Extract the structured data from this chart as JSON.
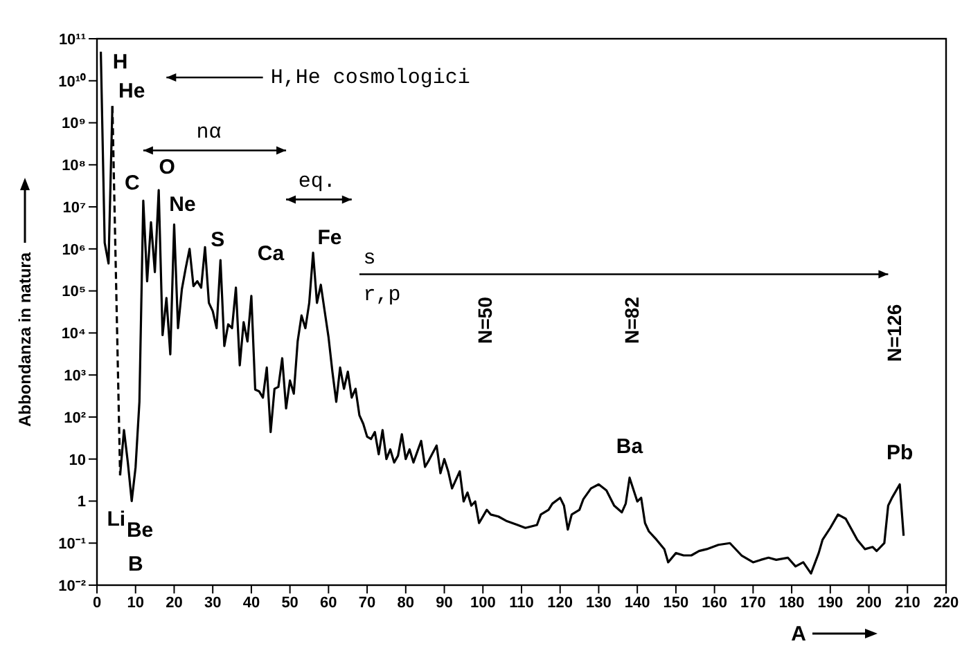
{
  "chart_data": {
    "type": "line",
    "xlabel": "A",
    "ylabel": "Abbondanza in natura",
    "log": "y",
    "marker": "none",
    "xlim": [
      0,
      220
    ],
    "xticks": [
      0,
      10,
      20,
      30,
      40,
      50,
      60,
      70,
      80,
      90,
      100,
      110,
      120,
      130,
      140,
      150,
      160,
      170,
      180,
      190,
      200,
      210,
      220
    ],
    "ylim": [
      0.01,
      100000000000.0
    ],
    "yticks": [
      {
        "value": 0.01,
        "label": "10⁻²"
      },
      {
        "value": 0.1,
        "label": "10⁻¹"
      },
      1,
      10,
      {
        "value": 100,
        "label": "10²"
      },
      {
        "value": 1000,
        "label": "10³"
      },
      {
        "value": 10000,
        "label": "10⁴"
      },
      {
        "value": 100000,
        "label": "10⁵"
      },
      {
        "value": 1000000,
        "label": "10⁶"
      },
      {
        "value": 10000000,
        "label": "10⁷"
      },
      {
        "value": 100000000,
        "label": "10⁸"
      },
      {
        "value": 1000000000,
        "label": "10⁹"
      },
      {
        "value": 10000000000,
        "label": "10¹⁰"
      },
      {
        "value": 100000000000,
        "label": "10¹¹"
      }
    ],
    "series": [
      {
        "color": "#000000",
        "line_style": "solid",
        "x": [
          1,
          2,
          3,
          4
        ],
        "values": [
          49000000000.0,
          1400000.0,
          450000.0,
          2500000000.0
        ]
      },
      {
        "color": "#000000",
        "line_style": "dashed",
        "x": [
          4,
          6
        ],
        "values": [
          2500000000.0,
          4.1
        ]
      },
      {
        "color": "#000000",
        "line_style": "solid",
        "x": [
          6,
          7,
          8,
          9,
          10,
          11,
          12,
          13,
          14,
          15,
          16,
          17,
          18,
          19,
          20,
          21,
          22,
          23,
          24,
          25,
          26,
          27,
          28,
          29,
          30,
          31,
          32,
          33,
          34,
          35,
          36,
          37,
          38,
          39,
          40,
          41,
          42,
          43,
          44,
          45,
          46,
          47,
          48,
          49,
          50,
          51,
          52,
          53,
          54,
          55,
          56,
          57,
          58,
          59,
          60,
          61,
          62,
          63,
          64,
          65,
          66,
          67,
          68,
          69,
          70,
          71,
          72,
          73,
          74,
          75,
          76,
          77,
          78,
          79,
          80,
          81,
          82,
          84,
          85,
          86,
          88,
          89,
          90,
          91,
          92,
          94,
          95,
          96,
          97,
          98,
          99,
          101,
          102,
          104,
          106,
          109,
          111,
          114,
          115,
          117,
          118,
          120,
          121,
          122,
          123,
          125,
          126,
          128,
          130,
          132,
          134,
          136,
          137,
          138,
          140,
          141,
          142,
          143,
          145,
          147,
          148,
          150,
          152,
          154,
          156,
          158,
          161,
          164,
          167,
          170,
          172,
          174,
          176,
          179,
          181,
          183,
          185,
          187,
          188,
          190,
          192,
          194,
          197,
          199,
          201,
          202,
          204,
          205,
          206,
          208,
          209
        ],
        "values": [
          4.1,
          49,
          8.3,
          1,
          6.3,
          230,
          14000000.0,
          170000.0,
          4300000.0,
          280000.0,
          25000000.0,
          8900.0,
          68000.0,
          3100.0,
          3800000.0,
          13000.0,
          110000.0,
          350000.0,
          1000000.0,
          130000.0,
          170000.0,
          120000.0,
          1100000.0,
          52000.0,
          33000.0,
          13000.0,
          540000.0,
          4900.0,
          16000.0,
          13000.0,
          120000.0,
          1700.0,
          18000.0,
          6300.0,
          76000.0,
          450,
          410,
          290,
          1500.0,
          44,
          470,
          520,
          2500.0,
          160,
          740,
          360,
          6300.0,
          26000.0,
          13000.0,
          52000.0,
          810000.0,
          52000.0,
          140000.0,
          33000.0,
          7900.0,
          1200.0,
          230,
          1500.0,
          470,
          1200.0,
          290,
          470,
          110,
          69,
          34,
          30,
          44,
          13,
          49,
          10,
          17,
          8.3,
          12,
          39,
          10,
          17,
          8.3,
          27,
          6.5,
          9.3,
          21,
          4.6,
          10,
          5.1,
          2,
          5.1,
          0.98,
          1.6,
          0.78,
          0.98,
          0.3,
          0.62,
          0.48,
          0.43,
          0.34,
          0.27,
          0.23,
          0.27,
          0.48,
          0.62,
          0.87,
          1.2,
          0.78,
          0.21,
          0.48,
          0.62,
          1.1,
          2,
          2.5,
          1.8,
          0.78,
          0.54,
          0.87,
          3.6,
          0.98,
          1.2,
          0.3,
          0.19,
          0.12,
          0.072,
          0.035,
          0.058,
          0.051,
          0.051,
          0.065,
          0.072,
          0.091,
          0.1,
          0.051,
          0.035,
          0.04,
          0.045,
          0.04,
          0.045,
          0.028,
          0.035,
          0.019,
          0.058,
          0.12,
          0.23,
          0.48,
          0.38,
          0.12,
          0.072,
          0.081,
          0.065,
          0.1,
          0.78,
          1.2,
          2.5,
          0.15
        ]
      }
    ],
    "annotations": [
      {
        "text": "H",
        "x": 1,
        "y": 49000000000.0
      },
      {
        "text": "He",
        "x": 4,
        "y": 2500000000.0
      },
      {
        "text": "Be",
        "x": 9,
        "y": 1
      },
      {
        "text": "C",
        "x": 12,
        "y": 14000000.0
      },
      {
        "text": "O",
        "x": 16,
        "y": 25000000.0
      },
      {
        "text": "Ne",
        "x": 20,
        "y": 3800000.0
      },
      {
        "text": "S",
        "x": 32,
        "y": 540000.0
      },
      {
        "text": "Ca",
        "x": 40,
        "y": 76000.0
      },
      {
        "text": "Fe",
        "x": 56,
        "y": 810000.0
      },
      {
        "text": "Ba",
        "x": 138,
        "y": 3.6
      },
      {
        "text": "Pb",
        "x": 208,
        "y": 2.5
      },
      "H,He cosmologici",
      "nα",
      "eq.",
      "s",
      "r,p",
      "N=50",
      "N=82",
      "N=126",
      "Li",
      "B"
    ]
  }
}
